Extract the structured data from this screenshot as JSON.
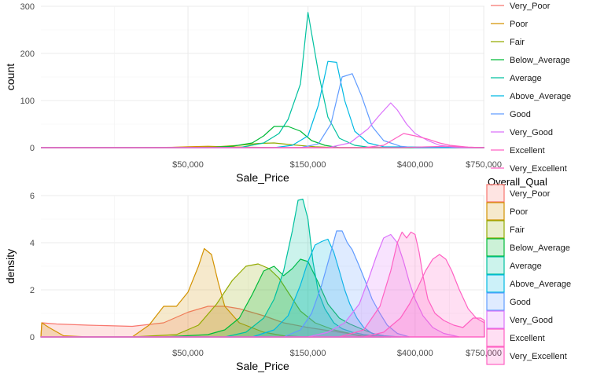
{
  "chart_data": [
    {
      "type": "line",
      "title": "",
      "xlabel": "Sale_Price",
      "ylabel": "count",
      "x_scale": "log",
      "xlim": [
        13000,
        755000
      ],
      "ylim": [
        0,
        300
      ],
      "x_ticks": [
        {
          "value": 50000,
          "label": "$50,000"
        },
        {
          "value": 150000,
          "label": "$150,000"
        },
        {
          "value": 400000,
          "label": "$400,000"
        },
        {
          "value": 750000,
          "label": "$750,000"
        }
      ],
      "y_ticks": [
        {
          "value": 0,
          "label": "0"
        },
        {
          "value": 100,
          "label": "100"
        },
        {
          "value": 200,
          "label": "200"
        },
        {
          "value": 300,
          "label": "300"
        }
      ],
      "grid": true,
      "legend": "right",
      "series": [
        {
          "name": "Very_Poor",
          "color": "#F8766D",
          "x": [
            13000,
            30000,
            50000,
            70000,
            100000,
            150000,
            755000
          ],
          "y": [
            0,
            0,
            1,
            1,
            0,
            0,
            0
          ]
        },
        {
          "name": "Poor",
          "color": "#D39200",
          "x": [
            13000,
            40000,
            50000,
            60000,
            70000,
            85000,
            120000,
            755000
          ],
          "y": [
            0,
            0,
            2,
            3,
            2,
            1,
            0,
            0
          ]
        },
        {
          "name": "Fair",
          "color": "#93AA00",
          "x": [
            13000,
            50000,
            65000,
            80000,
            95000,
            110000,
            130000,
            160000,
            200000,
            755000
          ],
          "y": [
            0,
            0,
            2,
            5,
            9,
            10,
            6,
            2,
            0,
            0
          ]
        },
        {
          "name": "Below_Average",
          "color": "#00BA38",
          "x": [
            13000,
            60000,
            75000,
            90000,
            100000,
            110000,
            125000,
            140000,
            155000,
            175000,
            200000,
            755000
          ],
          "y": [
            0,
            0,
            3,
            10,
            25,
            45,
            45,
            35,
            15,
            5,
            0,
            0
          ]
        },
        {
          "name": "Average",
          "color": "#00C19F",
          "x": [
            13000,
            80000,
            100000,
            115000,
            125000,
            140000,
            150000,
            165000,
            180000,
            200000,
            230000,
            270000,
            755000
          ],
          "y": [
            0,
            0,
            10,
            30,
            60,
            135,
            287,
            160,
            65,
            20,
            5,
            0,
            0
          ]
        },
        {
          "name": "Above_Average",
          "color": "#00B9E3",
          "x": [
            13000,
            110000,
            130000,
            150000,
            165000,
            180000,
            195000,
            210000,
            230000,
            260000,
            300000,
            755000
          ],
          "y": [
            0,
            0,
            5,
            25,
            90,
            183,
            181,
            100,
            35,
            10,
            2,
            0
          ]
        },
        {
          "name": "Good",
          "color": "#619CFF",
          "x": [
            13000,
            140000,
            165000,
            185000,
            205000,
            225000,
            245000,
            270000,
            300000,
            350000,
            400000,
            755000
          ],
          "y": [
            0,
            0,
            8,
            50,
            150,
            157,
            110,
            45,
            15,
            3,
            0,
            0
          ]
        },
        {
          "name": "Very_Good",
          "color": "#DB72FB",
          "x": [
            13000,
            180000,
            220000,
            260000,
            290000,
            320000,
            340000,
            370000,
            400000,
            450000,
            500000,
            600000,
            755000
          ],
          "y": [
            0,
            0,
            10,
            40,
            70,
            95,
            80,
            50,
            30,
            15,
            5,
            0,
            0
          ]
        },
        {
          "name": "Excellent",
          "color": "#FF61C3",
          "x": [
            13000,
            250000,
            300000,
            360000,
            400000,
            450000,
            500000,
            550000,
            650000,
            755000
          ],
          "y": [
            0,
            0,
            5,
            30,
            25,
            18,
            10,
            5,
            1,
            0
          ]
        },
        {
          "name": "Very_Excellent",
          "color": "#FF61C3",
          "x": [
            13000,
            350000,
            450000,
            550000,
            650000,
            755000
          ],
          "y": [
            0,
            0,
            2,
            3,
            1,
            0
          ]
        }
      ]
    },
    {
      "type": "area",
      "title": "",
      "xlabel": "Sale_Price",
      "ylabel": "density",
      "x_scale": "log",
      "xlim": [
        13000,
        755000
      ],
      "ylim": [
        0,
        6
      ],
      "x_ticks": [
        {
          "value": 50000,
          "label": "$50,000"
        },
        {
          "value": 150000,
          "label": "$150,000"
        },
        {
          "value": 400000,
          "label": "$400,000"
        },
        {
          "value": 750000,
          "label": "$750,000"
        }
      ],
      "y_ticks": [
        {
          "value": 0,
          "label": "0"
        },
        {
          "value": 2,
          "label": "2"
        },
        {
          "value": 4,
          "label": "4"
        },
        {
          "value": 6,
          "label": "6"
        }
      ],
      "grid": true,
      "legend": "right",
      "legend_title": "Overall_Qual",
      "series": [
        {
          "name": "Very_Poor",
          "color": "#F8766D",
          "x": [
            13000,
            13100,
            15000,
            20000,
            30000,
            40000,
            50000,
            60000,
            70000,
            80000,
            100000,
            120000,
            150000,
            200000,
            250000,
            300000
          ],
          "y": [
            0,
            0.6,
            0.55,
            0.5,
            0.45,
            0.6,
            1.05,
            1.3,
            1.3,
            1.2,
            0.9,
            0.6,
            0.4,
            0.2,
            0.05,
            0
          ]
        },
        {
          "name": "Poor",
          "color": "#D39200",
          "x": [
            13000,
            13100,
            14000,
            16000,
            20000,
            30000,
            35000,
            40000,
            45000,
            50000,
            55000,
            58000,
            62000,
            66000,
            70000,
            80000,
            100000,
            120000,
            140000,
            160000
          ],
          "y": [
            0,
            0.6,
            0.4,
            0.05,
            0,
            0,
            0.5,
            1.3,
            1.3,
            1.9,
            3.0,
            3.75,
            3.5,
            2.3,
            1.3,
            0.6,
            0.2,
            0.05,
            0.01,
            0
          ]
        },
        {
          "name": "Fair",
          "color": "#93AA00",
          "x": [
            13000,
            30000,
            45000,
            55000,
            65000,
            75000,
            85000,
            95000,
            105000,
            115000,
            125000,
            140000,
            160000,
            190000,
            220000,
            250000
          ],
          "y": [
            0,
            0,
            0.1,
            0.5,
            1.4,
            2.4,
            3.0,
            3.1,
            2.9,
            2.5,
            1.9,
            1.1,
            0.6,
            0.3,
            0.15,
            0
          ]
        },
        {
          "name": "Below_Average",
          "color": "#00BA38",
          "x": [
            13000,
            40000,
            60000,
            70000,
            80000,
            90000,
            100000,
            110000,
            120000,
            130000,
            140000,
            150000,
            165000,
            180000,
            200000,
            220000,
            250000,
            280000,
            320000
          ],
          "y": [
            0,
            0,
            0.1,
            0.3,
            0.8,
            1.8,
            2.8,
            3.0,
            2.6,
            2.9,
            3.3,
            3.2,
            2.3,
            1.4,
            0.8,
            0.55,
            0.3,
            0.1,
            0
          ]
        },
        {
          "name": "Average",
          "color": "#00C19F",
          "x": [
            13000,
            70000,
            85000,
            100000,
            110000,
            120000,
            130000,
            137000,
            143000,
            150000,
            157000,
            165000,
            175000,
            190000,
            205000,
            225000,
            250000,
            300000
          ],
          "y": [
            0,
            0,
            0.2,
            0.8,
            1.6,
            2.8,
            4.5,
            5.8,
            5.85,
            5.0,
            3.2,
            1.9,
            1.2,
            0.6,
            0.35,
            0.2,
            0.1,
            0
          ]
        },
        {
          "name": "Above_Average",
          "color": "#00B9E3",
          "x": [
            13000,
            90000,
            110000,
            125000,
            140000,
            150000,
            160000,
            170000,
            180000,
            190000,
            200000,
            210000,
            220000,
            235000,
            250000,
            270000,
            300000,
            350000
          ],
          "y": [
            0,
            0,
            0.3,
            0.9,
            2.2,
            3.2,
            3.9,
            4.05,
            4.15,
            3.6,
            2.8,
            2.0,
            1.4,
            0.8,
            0.4,
            0.15,
            0.05,
            0
          ]
        },
        {
          "name": "Good",
          "color": "#619CFF",
          "x": [
            13000,
            120000,
            140000,
            155000,
            170000,
            185000,
            195000,
            205000,
            215000,
            225000,
            240000,
            255000,
            270000,
            290000,
            310000,
            340000,
            380000
          ],
          "y": [
            0,
            0,
            0.3,
            1.0,
            2.2,
            3.6,
            4.5,
            4.5,
            4.0,
            3.7,
            3.0,
            2.3,
            1.6,
            1.0,
            0.5,
            0.15,
            0
          ]
        },
        {
          "name": "Very_Good",
          "color": "#DB72FB",
          "x": [
            13000,
            150000,
            180000,
            210000,
            240000,
            260000,
            280000,
            300000,
            320000,
            340000,
            360000,
            380000,
            400000,
            430000,
            470000,
            520000,
            600000
          ],
          "y": [
            0,
            0,
            0.2,
            0.6,
            1.4,
            2.4,
            3.4,
            4.2,
            4.35,
            4.0,
            3.2,
            2.3,
            1.6,
            0.9,
            0.4,
            0.15,
            0
          ]
        },
        {
          "name": "Excellent",
          "color": "#FF61C3",
          "x": [
            13000,
            200000,
            250000,
            290000,
            320000,
            340000,
            355000,
            370000,
            385000,
            400000,
            415000,
            430000,
            450000,
            480000,
            520000,
            570000,
            620000,
            680000,
            730000,
            755000,
            755500
          ],
          "y": [
            0,
            0,
            0.3,
            1.3,
            2.8,
            4.0,
            4.45,
            4.2,
            4.45,
            4.35,
            3.6,
            2.6,
            1.6,
            1.0,
            0.7,
            0.5,
            0.4,
            0.8,
            0.8,
            0.7,
            0
          ]
        },
        {
          "name": "Very_Excellent",
          "color": "#FF61C3",
          "x": [
            13000,
            250000,
            300000,
            350000,
            380000,
            410000,
            440000,
            470000,
            500000,
            530000,
            560000,
            600000,
            650000,
            700000,
            755000,
            755500
          ],
          "y": [
            0,
            0,
            0.2,
            0.8,
            1.4,
            2.1,
            2.8,
            3.3,
            3.5,
            3.3,
            2.8,
            2.0,
            1.2,
            0.8,
            0.6,
            0
          ]
        }
      ]
    }
  ]
}
